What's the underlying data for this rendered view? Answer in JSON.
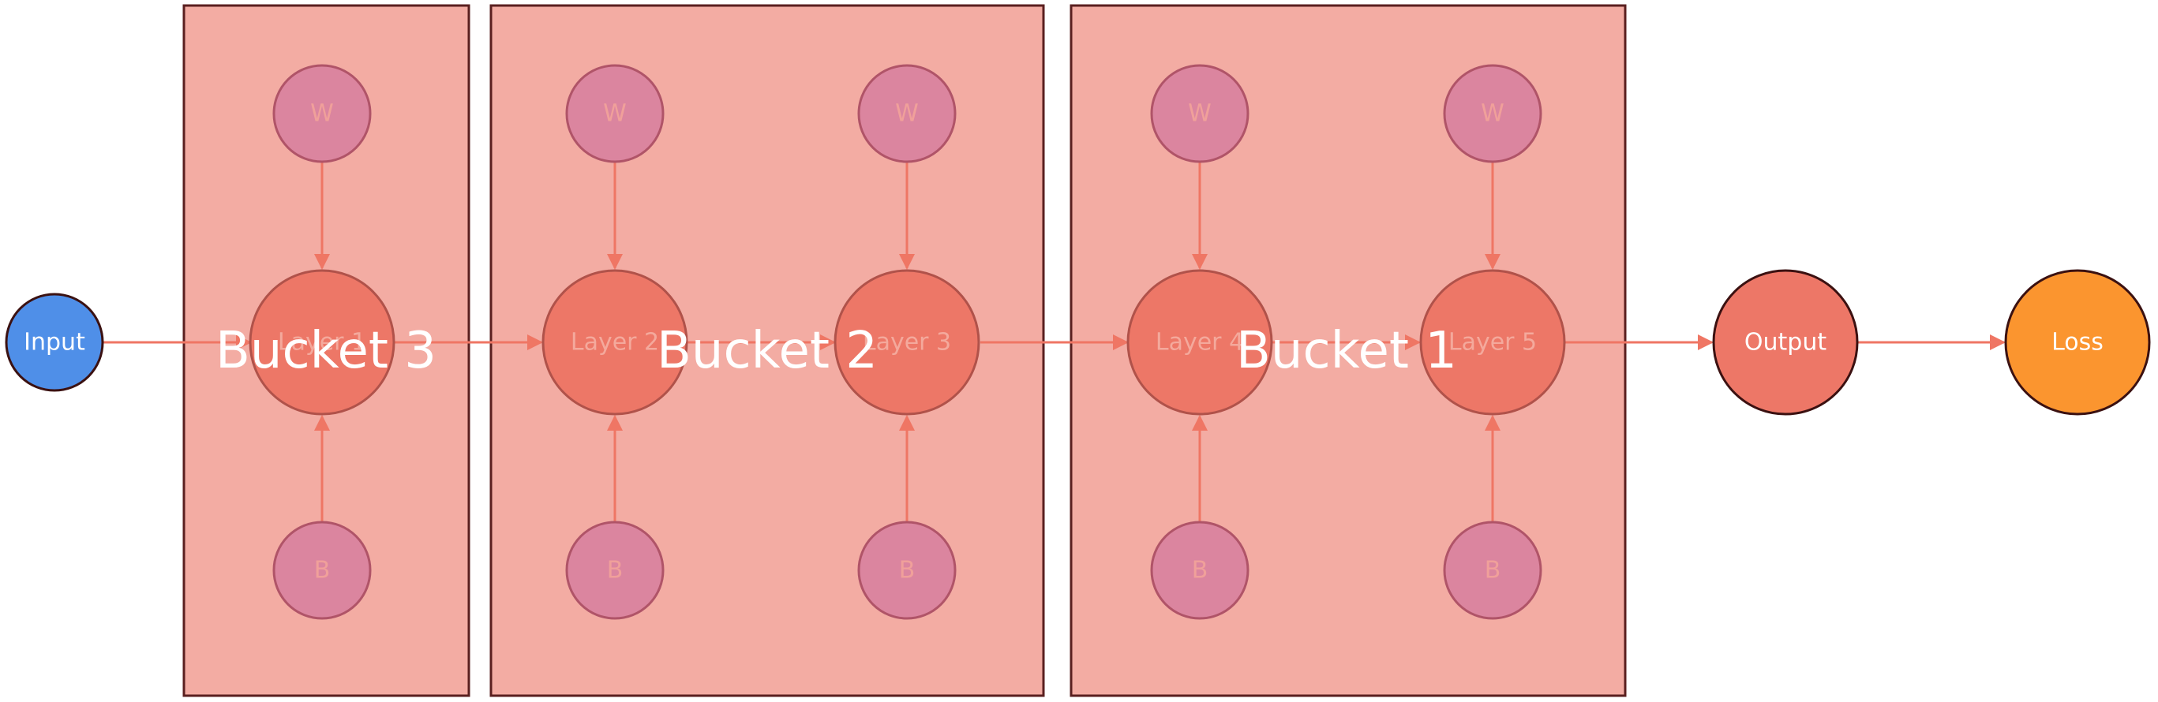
{
  "colors": {
    "bucket_fill": "#f3aca3",
    "bucket_stroke": "#5a1f1f",
    "edge": "#ef7664",
    "layer_fill": "#ed7767",
    "layer_stroke": "#b0524a",
    "layer_text": "#f4a99c",
    "param_fill": "#db859f",
    "param_stroke": "#b05468",
    "param_text": "#f0a09a",
    "input_fill": "#4f8fe8",
    "output_fill": "#ed7767",
    "loss_fill": "#fb952f",
    "io_stroke": "#3b1111",
    "io_text": "#ffffff",
    "bucket_text": "#ffffff"
  },
  "buckets": [
    {
      "id": "bucket-3",
      "label": "Bucket 3"
    },
    {
      "id": "bucket-2",
      "label": "Bucket 2"
    },
    {
      "id": "bucket-1",
      "label": "Bucket 1"
    }
  ],
  "nodes": {
    "input": "Input",
    "layer1": "Layer 1",
    "layer2": "Layer 2",
    "layer3": "Layer 3",
    "layer4": "Layer 4",
    "layer5": "Layer 5",
    "output": "Output",
    "loss": "Loss",
    "w1": "W",
    "w2": "W",
    "w3": "W",
    "w4": "W",
    "w5": "W",
    "b1": "B",
    "b2": "B",
    "b3": "B",
    "b4": "B",
    "b5": "B"
  }
}
